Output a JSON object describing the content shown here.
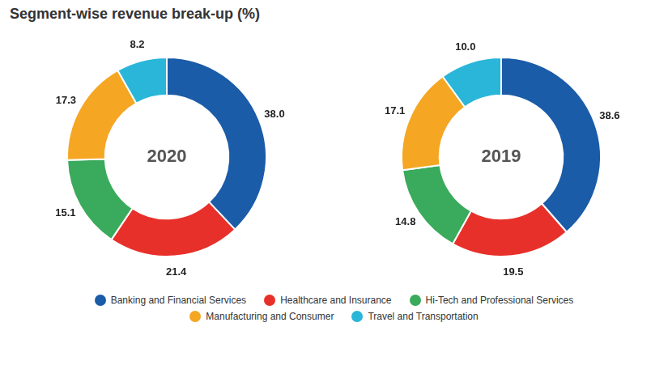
{
  "title": "Segment-wise revenue break-up (%)",
  "legend": "bottom",
  "chart_data": [
    {
      "type": "doughnut",
      "title": "2020",
      "categories": [
        "Banking and Financial Services",
        "Healthcare and Insurance",
        "Hi-Tech and Professional Services",
        "Manufacturing and Consumer",
        "Travel and Transportation"
      ],
      "values": [
        38.0,
        21.4,
        15.1,
        17.3,
        8.2
      ],
      "value_labels": [
        "38.0",
        "21.4",
        "15.1",
        "17.3",
        "8.2"
      ],
      "colors": [
        "#1a5ca8",
        "#e8302a",
        "#3aaa5c",
        "#f5a623",
        "#29b6d8"
      ],
      "data_labels": true
    },
    {
      "type": "doughnut",
      "title": "2019",
      "categories": [
        "Banking and Financial Services",
        "Healthcare and Insurance",
        "Hi-Tech and Professional Services",
        "Manufacturing and Consumer",
        "Travel and Transportation"
      ],
      "values": [
        38.6,
        19.5,
        14.8,
        17.1,
        10.0
      ],
      "value_labels": [
        "38.6",
        "19.5",
        "14.8",
        "17.1",
        "10.0"
      ],
      "colors": [
        "#1a5ca8",
        "#e8302a",
        "#3aaa5c",
        "#f5a623",
        "#29b6d8"
      ],
      "data_labels": true
    }
  ]
}
